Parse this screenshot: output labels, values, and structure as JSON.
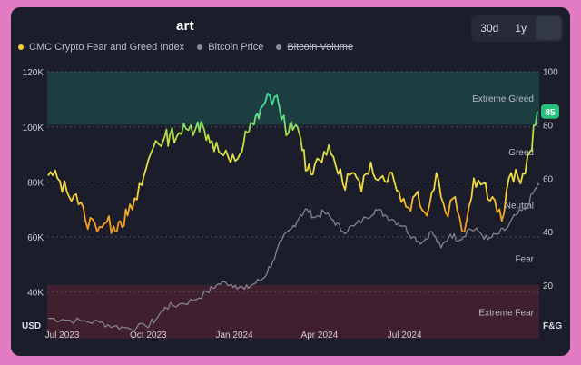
{
  "header": {
    "title": "art",
    "ranges": [
      "30d",
      "1y"
    ],
    "active_range_index": 2
  },
  "legend": [
    {
      "label": "CMC Crypto Fear and Greed Index",
      "color": "#f0d23c",
      "enabled": true
    },
    {
      "label": "Bitcoin Price",
      "color": "#8a8d99",
      "enabled": true
    },
    {
      "label": "Bitcoin Volume",
      "color": "#8a8d99",
      "enabled": false
    }
  ],
  "chart_data": {
    "type": "line",
    "left_axis": {
      "unit": "USD",
      "ylim": [
        28000,
        125000
      ],
      "ticks": [
        "40K",
        "60K",
        "80K",
        "100K",
        "120K"
      ],
      "tick_values": [
        40000,
        60000,
        80000,
        100000,
        120000
      ]
    },
    "right_axis": {
      "unit": "F&G",
      "ylim": [
        5,
        105
      ],
      "ticks": [
        "20",
        "40",
        "60",
        "80",
        "100"
      ],
      "tick_values": [
        20,
        40,
        60,
        80,
        100
      ]
    },
    "x_ticks": [
      "Jul 2023",
      "Oct 2023",
      "Jan 2024",
      "Apr 2024",
      "Jul 2024"
    ],
    "x_tick_values": [
      0,
      92,
      184,
      275,
      366
    ],
    "x_range": [
      -16,
      510
    ],
    "zones": [
      {
        "label": "Extreme Greed",
        "range": [
          80,
          100
        ]
      },
      {
        "label": "Greed",
        "range": [
          60,
          80
        ]
      },
      {
        "label": "Neutral",
        "range": [
          40,
          60
        ]
      },
      {
        "label": "Fear",
        "range": [
          20,
          40
        ]
      },
      {
        "label": "Extreme Fear",
        "range": [
          0,
          20
        ]
      }
    ],
    "current_value": "85",
    "series": [
      {
        "name": "CMC Crypto Fear and Greed Index",
        "x": [
          -15,
          -5,
          5,
          15,
          25,
          35,
          45,
          55,
          62,
          70,
          80,
          90,
          100,
          108,
          115,
          125,
          135,
          145,
          152,
          160,
          170,
          180,
          190,
          198,
          205,
          212,
          222,
          232,
          242,
          248,
          255,
          262,
          270,
          280,
          290,
          300,
          310,
          320,
          330,
          340,
          350,
          360,
          370,
          380,
          390,
          400,
          410,
          420,
          430,
          440,
          450,
          460,
          470,
          480,
          490,
          500,
          508
        ],
        "y": [
          61,
          60,
          55,
          54,
          44,
          43,
          43,
          42,
          44,
          46,
          52,
          64,
          74,
          74,
          76,
          77,
          78,
          81,
          78,
          74,
          69,
          66,
          69,
          77,
          80,
          86,
          91,
          87,
          77,
          79,
          75,
          63,
          65,
          70,
          68,
          58,
          62,
          55,
          66,
          60,
          62,
          55,
          49,
          55,
          46,
          62,
          47,
          53,
          40,
          60,
          58,
          53,
          44,
          62,
          58,
          70,
          85
        ]
      },
      {
        "name": "Bitcoin Price",
        "x": [
          -15,
          0,
          20,
          40,
          55,
          70,
          90,
          100,
          110,
          125,
          140,
          155,
          165,
          175,
          185,
          195,
          205,
          215,
          225,
          235,
          245,
          255,
          262,
          270,
          280,
          290,
          300,
          312,
          325,
          335,
          345,
          355,
          365,
          375,
          385,
          395,
          405,
          415,
          425,
          435,
          445,
          455,
          465,
          475,
          485,
          495,
          505,
          510
        ],
        "y": [
          30500,
          30000,
          29500,
          29000,
          27500,
          27000,
          27500,
          30000,
          34500,
          35500,
          37000,
          40000,
          42500,
          43500,
          42500,
          41000,
          43000,
          45000,
          51000,
          59000,
          63000,
          68000,
          70000,
          67000,
          69000,
          66000,
          62000,
          64000,
          67000,
          70000,
          68000,
          66000,
          64000,
          60000,
          58000,
          62000,
          56000,
          61000,
          59000,
          63000,
          62000,
          59000,
          61000,
          63000,
          68000,
          70000,
          77000,
          79000
        ]
      }
    ]
  }
}
